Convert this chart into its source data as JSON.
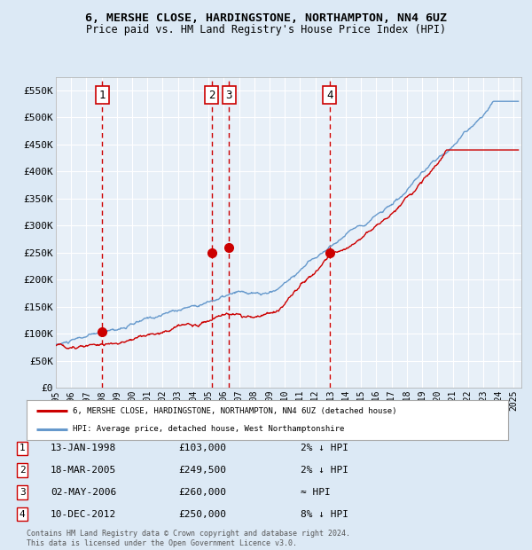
{
  "title_line1": "6, MERSHE CLOSE, HARDINGSTONE, NORTHAMPTON, NN4 6UZ",
  "title_line2": "Price paid vs. HM Land Registry's House Price Index (HPI)",
  "bg_color": "#dce9f5",
  "plot_bg_color": "#e8f0f8",
  "grid_color": "#ffffff",
  "ylim": [
    0,
    575000
  ],
  "yticks": [
    0,
    50000,
    100000,
    150000,
    200000,
    250000,
    300000,
    350000,
    400000,
    450000,
    500000,
    550000
  ],
  "ytick_labels": [
    "£0",
    "£50K",
    "£100K",
    "£150K",
    "£200K",
    "£250K",
    "£300K",
    "£350K",
    "£400K",
    "£450K",
    "£500K",
    "£550K"
  ],
  "sale_dates_num": [
    1998.04,
    2005.21,
    2006.34,
    2012.94
  ],
  "sale_prices": [
    103000,
    249500,
    260000,
    250000
  ],
  "sale_labels": [
    "1",
    "2",
    "3",
    "4"
  ],
  "vline_color": "#cc0000",
  "dot_color": "#cc0000",
  "hpi_line_color": "#6699cc",
  "price_line_color": "#cc0000",
  "legend_label_red": "6, MERSHE CLOSE, HARDINGSTONE, NORTHAMPTON, NN4 6UZ (detached house)",
  "legend_label_blue": "HPI: Average price, detached house, West Northamptonshire",
  "table_entries": [
    {
      "num": "1",
      "date": "13-JAN-1998",
      "price": "£103,000",
      "change": "2% ↓ HPI"
    },
    {
      "num": "2",
      "date": "18-MAR-2005",
      "price": "£249,500",
      "change": "2% ↓ HPI"
    },
    {
      "num": "3",
      "date": "02-MAY-2006",
      "price": "£260,000",
      "change": "≈ HPI"
    },
    {
      "num": "4",
      "date": "10-DEC-2012",
      "price": "£250,000",
      "change": "8% ↓ HPI"
    }
  ],
  "footnote": "Contains HM Land Registry data © Crown copyright and database right 2024.\nThis data is licensed under the Open Government Licence v3.0.",
  "xlim_start": 1995.0,
  "xlim_end": 2025.5
}
